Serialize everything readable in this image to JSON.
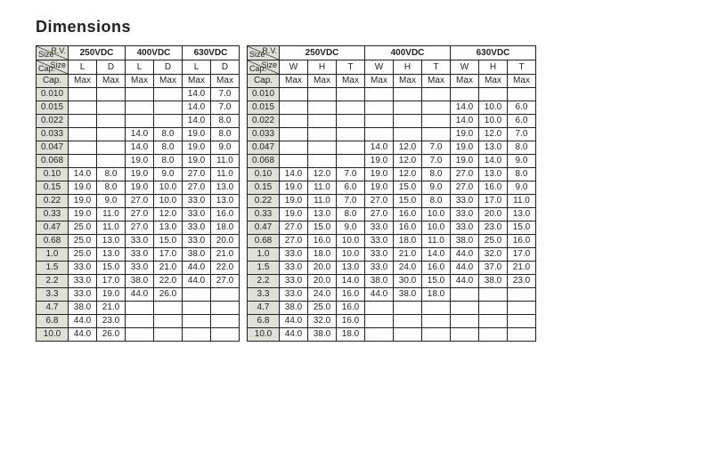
{
  "title": "Dimensions",
  "colors": {
    "border": "#231f20",
    "row_header_bg": "#dfe1d6",
    "text": "#231f20",
    "bg": "#ffffff"
  },
  "table1": {
    "rv_label": "R.V.",
    "size_label": "Size",
    "cap_label": "Cap.",
    "voltages": [
      "250VDC",
      "400VDC",
      "630VDC"
    ],
    "sub_cols": [
      "L",
      "D"
    ],
    "max_label": "Max",
    "caps": [
      "0.010",
      "0.015",
      "0.022",
      "0.033",
      "0.047",
      "0.068",
      "0.10",
      "0.15",
      "0.22",
      "0.33",
      "0.47",
      "0.68",
      "1.0",
      "1.5",
      "2.2",
      "3.3",
      "4.7",
      "6.8",
      "10.0"
    ],
    "data": [
      [
        "",
        "",
        "",
        "",
        "14.0",
        "7.0"
      ],
      [
        "",
        "",
        "",
        "",
        "14.0",
        "7.0"
      ],
      [
        "",
        "",
        "",
        "",
        "14.0",
        "8.0"
      ],
      [
        "",
        "",
        "14.0",
        "8.0",
        "19.0",
        "8.0"
      ],
      [
        "",
        "",
        "14.0",
        "8.0",
        "19.0",
        "9.0"
      ],
      [
        "",
        "",
        "19.0",
        "8.0",
        "19.0",
        "11.0"
      ],
      [
        "14.0",
        "8.0",
        "19.0",
        "9.0",
        "27.0",
        "11.0"
      ],
      [
        "19.0",
        "8.0",
        "19.0",
        "10.0",
        "27.0",
        "13.0"
      ],
      [
        "19.0",
        "9.0",
        "27.0",
        "10.0",
        "33.0",
        "13.0"
      ],
      [
        "19.0",
        "11.0",
        "27.0",
        "12.0",
        "33.0",
        "16.0"
      ],
      [
        "25.0",
        "11.0",
        "27.0",
        "13.0",
        "33.0",
        "18.0"
      ],
      [
        "25.0",
        "13.0",
        "33.0",
        "15.0",
        "33.0",
        "20.0"
      ],
      [
        "25.0",
        "13.0",
        "33.0",
        "17.0",
        "38.0",
        "21.0"
      ],
      [
        "33.0",
        "15.0",
        "33.0",
        "21.0",
        "44.0",
        "22.0"
      ],
      [
        "33.0",
        "17.0",
        "38.0",
        "22.0",
        "44.0",
        "27.0"
      ],
      [
        "33.0",
        "19.0",
        "44.0",
        "26.0",
        "",
        ""
      ],
      [
        "38.0",
        "21.0",
        "",
        "",
        "",
        ""
      ],
      [
        "44.0",
        "23.0",
        "",
        "",
        "",
        ""
      ],
      [
        "44.0",
        "26.0",
        "",
        "",
        "",
        ""
      ]
    ]
  },
  "table2": {
    "rv_label": "R.V.",
    "size_label": "Size",
    "cap_label": "Cap.",
    "voltages": [
      "250VDC",
      "400VDC",
      "630VDC"
    ],
    "sub_cols": [
      "W",
      "H",
      "T"
    ],
    "max_label": "Max",
    "caps": [
      "0.010",
      "0.015",
      "0.022",
      "0.033",
      "0.047",
      "0.068",
      "0.10",
      "0.15",
      "0.22",
      "0.33",
      "0.47",
      "0.68",
      "1.0",
      "1.5",
      "2.2",
      "3.3",
      "4.7",
      "6.8",
      "10.0"
    ],
    "data": [
      [
        "",
        "",
        "",
        "",
        "",
        "",
        "",
        "",
        ""
      ],
      [
        "",
        "",
        "",
        "",
        "",
        "",
        "14.0",
        "10.0",
        "6.0"
      ],
      [
        "",
        "",
        "",
        "",
        "",
        "",
        "14.0",
        "10.0",
        "6.0"
      ],
      [
        "",
        "",
        "",
        "",
        "",
        "",
        "19.0",
        "12.0",
        "7.0"
      ],
      [
        "",
        "",
        "",
        "14.0",
        "12.0",
        "7.0",
        "19.0",
        "13.0",
        "8.0"
      ],
      [
        "",
        "",
        "",
        "19.0",
        "12.0",
        "7.0",
        "19.0",
        "14.0",
        "9.0"
      ],
      [
        "14.0",
        "12.0",
        "7.0",
        "19.0",
        "12.0",
        "8.0",
        "27.0",
        "13.0",
        "8.0"
      ],
      [
        "19.0",
        "11.0",
        "6.0",
        "19.0",
        "15.0",
        "9.0",
        "27.0",
        "16.0",
        "9.0"
      ],
      [
        "19.0",
        "11.0",
        "7.0",
        "27.0",
        "15.0",
        "8.0",
        "33.0",
        "17.0",
        "11.0"
      ],
      [
        "19.0",
        "13.0",
        "8.0",
        "27.0",
        "16.0",
        "10.0",
        "33.0",
        "20.0",
        "13.0"
      ],
      [
        "27.0",
        "15.0",
        "9.0",
        "33.0",
        "16.0",
        "10.0",
        "33.0",
        "23.0",
        "15.0"
      ],
      [
        "27.0",
        "16.0",
        "10.0",
        "33.0",
        "18.0",
        "11.0",
        "38.0",
        "25.0",
        "16.0"
      ],
      [
        "33.0",
        "18.0",
        "10.0",
        "33.0",
        "21.0",
        "14.0",
        "44.0",
        "32.0",
        "17.0"
      ],
      [
        "33.0",
        "20.0",
        "13.0",
        "33.0",
        "24.0",
        "16.0",
        "44.0",
        "37.0",
        "21.0"
      ],
      [
        "33.0",
        "20.0",
        "14.0",
        "38.0",
        "30.0",
        "15.0",
        "44.0",
        "38.0",
        "23.0"
      ],
      [
        "33.0",
        "24.0",
        "16.0",
        "44.0",
        "38.0",
        "18.0",
        "",
        "",
        ""
      ],
      [
        "38.0",
        "25.0",
        "16.0",
        "",
        "",
        "",
        "",
        "",
        ""
      ],
      [
        "44.0",
        "32.0",
        "16.0",
        "",
        "",
        "",
        "",
        "",
        ""
      ],
      [
        "44.0",
        "38.0",
        "18.0",
        "",
        "",
        "",
        "",
        "",
        ""
      ]
    ]
  }
}
